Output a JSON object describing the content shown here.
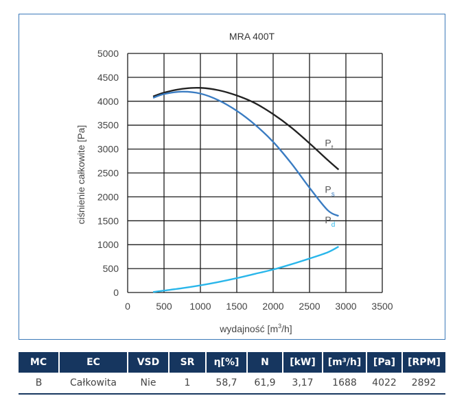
{
  "chart_data": {
    "type": "line",
    "title": "MRA 400T",
    "xlabel_main": "wydajność [m",
    "xlabel_sup": "3",
    "xlabel_end": "/h]",
    "ylabel": "ciśnienie całkowite [Pa]",
    "xlim": [
      0,
      3500
    ],
    "ylim": [
      0,
      5000
    ],
    "xticks": [
      "0",
      "500",
      "1000",
      "1500",
      "2000",
      "2500",
      "3000",
      "3500"
    ],
    "yticks": [
      "0",
      "500",
      "1000",
      "1500",
      "2000",
      "2500",
      "3000",
      "3500",
      "4000",
      "4500",
      "5000"
    ],
    "grid": true,
    "series": [
      {
        "name": "Pt",
        "label_main": "P",
        "label_sub": "t",
        "color": "#222222",
        "x": [
          350,
          500,
          750,
          1000,
          1250,
          1500,
          1750,
          2000,
          2250,
          2500,
          2750,
          2900
        ],
        "y": [
          4100,
          4180,
          4260,
          4280,
          4230,
          4120,
          3960,
          3730,
          3450,
          3120,
          2770,
          2570
        ]
      },
      {
        "name": "Ps",
        "label_main": "P",
        "label_sub": "s",
        "color": "#3a7cc2",
        "x": [
          350,
          500,
          750,
          1000,
          1250,
          1500,
          1750,
          2000,
          2250,
          2500,
          2750,
          2900
        ],
        "y": [
          4070,
          4150,
          4200,
          4160,
          4020,
          3800,
          3510,
          3150,
          2700,
          2190,
          1720,
          1600
        ]
      },
      {
        "name": "Pd",
        "label_main": "P",
        "label_sub": "d",
        "color": "#29b6ea",
        "x": [
          350,
          500,
          750,
          1000,
          1250,
          1500,
          1750,
          2000,
          2250,
          2500,
          2750,
          2900
        ],
        "y": [
          10,
          40,
          90,
          150,
          220,
          300,
          390,
          480,
          590,
          710,
          840,
          960
        ]
      }
    ]
  },
  "table": {
    "headers": [
      "MC",
      "EC",
      "VSD",
      "SR",
      "η[%]",
      "N",
      "[kW]",
      "[m³/h]",
      "[Pa]",
      "[RPM]"
    ],
    "row": [
      "B",
      "Całkowita",
      "Nie",
      "1",
      "58,7",
      "61,9",
      "3,17",
      "1688",
      "4022",
      "2892"
    ]
  }
}
